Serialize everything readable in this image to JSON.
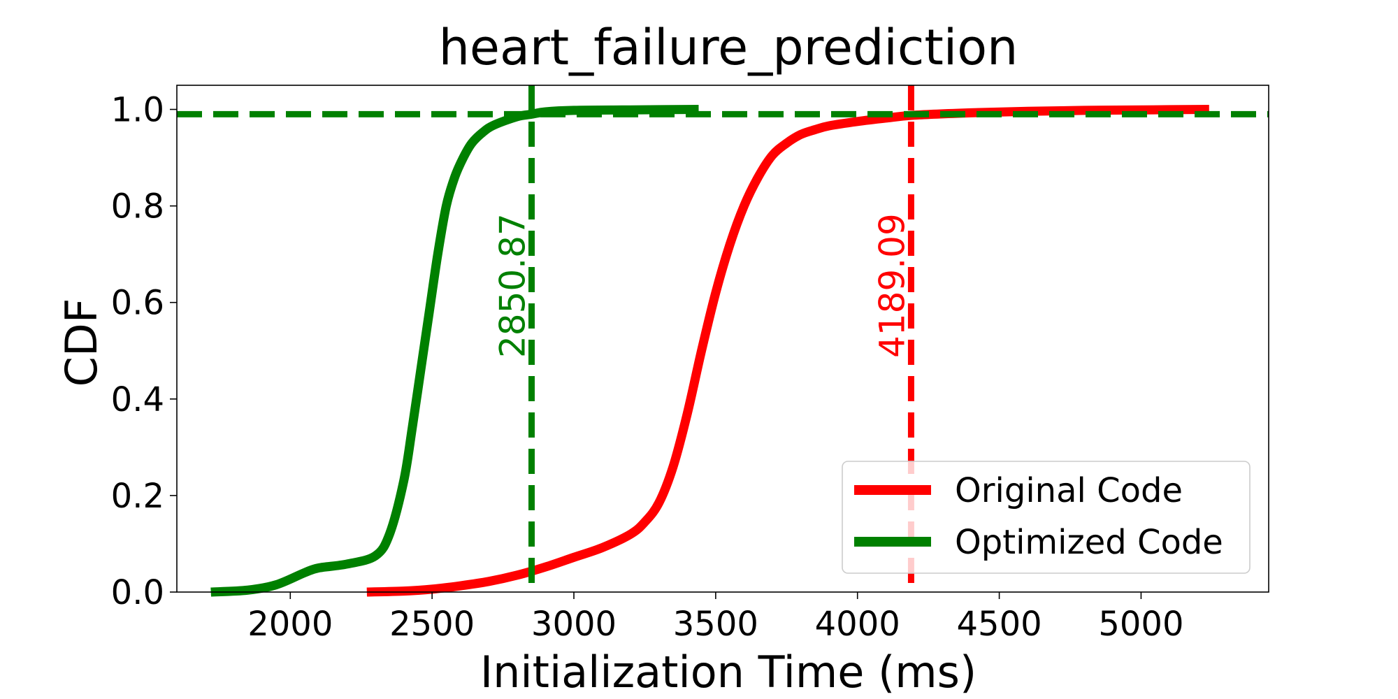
{
  "chart_data": {
    "type": "line",
    "title": "heart_failure_prediction",
    "xlabel": "Initialization Time (ms)",
    "ylabel": "CDF",
    "xlim": [
      1600,
      5450
    ],
    "ylim": [
      0,
      1.05
    ],
    "xticks": [
      2000,
      2500,
      3000,
      3500,
      4000,
      4500,
      5000
    ],
    "yticks": [
      0.0,
      0.2,
      0.4,
      0.6,
      0.8,
      1.0
    ],
    "ytick_labels": [
      "0.0",
      "0.2",
      "0.4",
      "0.6",
      "0.8",
      "1.0"
    ],
    "grid": false,
    "legend_position": "bottom-right",
    "series": [
      {
        "name": "Original Code",
        "color": "#ff0000",
        "x": [
          2270,
          2400,
          2500,
          2600,
          2700,
          2800,
          2900,
          3000,
          3100,
          3200,
          3250,
          3300,
          3350,
          3400,
          3450,
          3500,
          3550,
          3600,
          3650,
          3700,
          3750,
          3800,
          3850,
          3900,
          4000,
          4100,
          4200,
          4400,
          4600,
          4800,
          5000,
          5240
        ],
        "y": [
          0.0,
          0.002,
          0.006,
          0.013,
          0.022,
          0.035,
          0.052,
          0.072,
          0.092,
          0.12,
          0.145,
          0.185,
          0.26,
          0.37,
          0.5,
          0.62,
          0.72,
          0.8,
          0.86,
          0.905,
          0.93,
          0.948,
          0.958,
          0.966,
          0.975,
          0.982,
          0.988,
          0.993,
          0.996,
          0.998,
          0.999,
          1.0
        ]
      },
      {
        "name": "Optimized Code",
        "color": "#008000",
        "x": [
          1720,
          1850,
          1950,
          2050,
          2100,
          2200,
          2300,
          2350,
          2400,
          2430,
          2460,
          2490,
          2520,
          2550,
          2580,
          2610,
          2640,
          2680,
          2720,
          2800,
          2850,
          2900,
          3000,
          3200,
          3440
        ],
        "y": [
          0.0,
          0.004,
          0.015,
          0.04,
          0.05,
          0.058,
          0.075,
          0.12,
          0.23,
          0.34,
          0.46,
          0.58,
          0.7,
          0.8,
          0.86,
          0.9,
          0.93,
          0.953,
          0.968,
          0.985,
          0.99,
          0.995,
          0.998,
          0.999,
          1.0
        ]
      }
    ],
    "reference_lines": [
      {
        "orientation": "horizontal",
        "y": 0.99,
        "color": "#008000",
        "style": "dashed"
      },
      {
        "orientation": "vertical",
        "x": 2850.87,
        "label": "2850.87",
        "color": "#008000",
        "style": "dashed"
      },
      {
        "orientation": "vertical",
        "x": 4189.09,
        "label": "4189.09",
        "color": "#ff0000",
        "style": "dashed"
      }
    ]
  }
}
